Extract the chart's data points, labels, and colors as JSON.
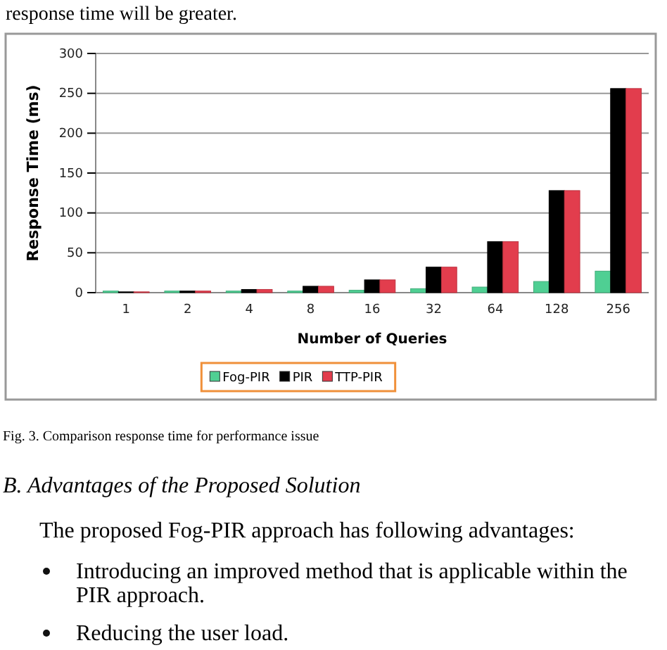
{
  "chart_data": {
    "type": "bar",
    "xlabel": "Number of Queries",
    "ylabel": "Response Time (ms)",
    "categories": [
      "1",
      "2",
      "4",
      "8",
      "16",
      "32",
      "64",
      "128",
      "256"
    ],
    "series": [
      {
        "name": "Fog-PIR",
        "color": "#4fcf93",
        "values": [
          2,
          2,
          2,
          2,
          3,
          5,
          7,
          14,
          27
        ]
      },
      {
        "name": "PIR",
        "color": "#000000",
        "values": [
          1,
          2,
          4,
          8,
          16,
          32,
          64,
          128,
          256
        ]
      },
      {
        "name": "TTP-PIR",
        "color": "#e23d4d",
        "values": [
          1,
          2,
          4,
          8,
          16,
          32,
          64,
          128,
          256
        ]
      }
    ],
    "ylim": [
      0,
      300
    ],
    "yticks": [
      0,
      50,
      100,
      150,
      200,
      250,
      300
    ],
    "grid": "y",
    "legend": "bottom",
    "annotations": [
      "response time will be greater.",
      "Fig. 3.   Comparison response time for performance issue",
      "B.  Advantages of the Proposed Solution",
      "The proposed Fog-PIR approach has following advantages:",
      "Introducing an improved method that is applicable within the PIR approach.",
      "Reducing the user load."
    ]
  }
}
